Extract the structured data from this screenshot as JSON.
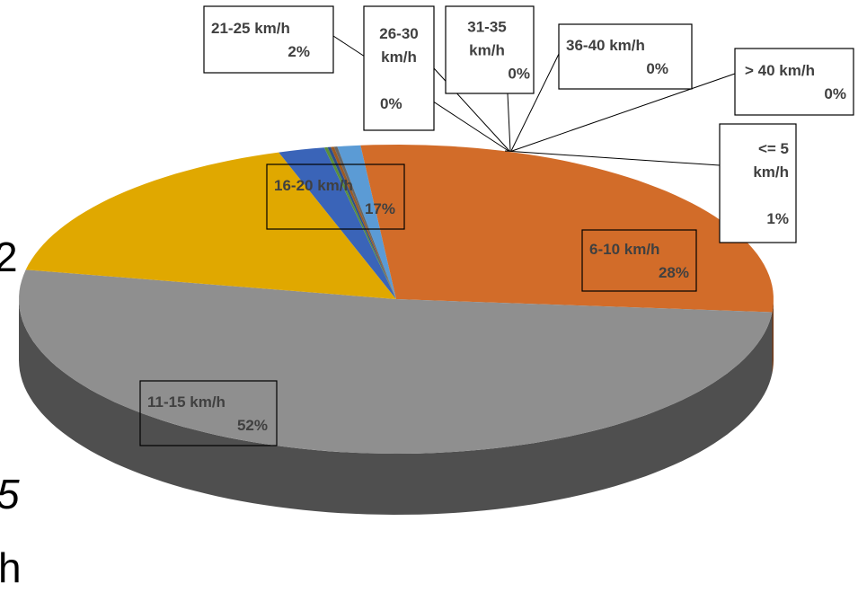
{
  "chart_data": {
    "type": "pie",
    "title": "",
    "slices": [
      {
        "label": "<= 5 km/h",
        "value": 1,
        "display": "1%",
        "color": "#5b9bd5"
      },
      {
        "label": "6-10 km/h",
        "value": 28,
        "display": "28%",
        "color": "#d26c29"
      },
      {
        "label": "11-15 km/h",
        "value": 52,
        "display": "52%",
        "color": "#8f8f8f"
      },
      {
        "label": "16-20 km/h",
        "value": 17,
        "display": "17%",
        "color": "#e0a800"
      },
      {
        "label": "21-25 km/h",
        "value": 2,
        "display": "2%",
        "color": "#3a64b8"
      },
      {
        "label": "26-30 km/h",
        "value": 0,
        "display": "0%",
        "color": "#5a8f3c"
      },
      {
        "label": "31-35 km/h",
        "value": 0,
        "display": "0%",
        "color": "#2e4f8a"
      },
      {
        "label": "36-40 km/h",
        "value": 0,
        "display": "0%",
        "color": "#9c5a22"
      },
      {
        "label": "> 40 km/h",
        "value": 0,
        "display": "0%",
        "color": "#666666"
      }
    ]
  },
  "edge_fragments": [
    "2",
    "5",
    "h"
  ]
}
